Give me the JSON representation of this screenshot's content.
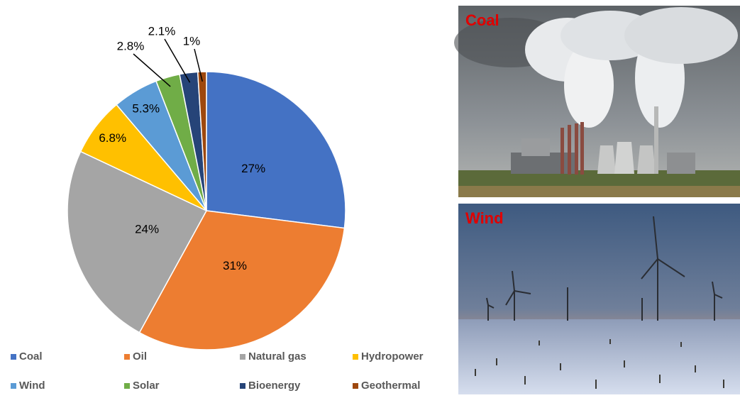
{
  "chart_data": {
    "type": "pie",
    "categories": [
      "Coal",
      "Oil",
      "Natural gas",
      "Hydropower",
      "Wind",
      "Solar",
      "Bioenergy",
      "Geothermal"
    ],
    "values": [
      27,
      31,
      24,
      6.8,
      5.3,
      2.8,
      2.1,
      1
    ],
    "value_labels": [
      "27%",
      "31%",
      "24%",
      "6.8%",
      "5.3%",
      "2.8%",
      "2.1%",
      "1%"
    ],
    "colors": [
      "#4472c4",
      "#ed7d31",
      "#a5a5a5",
      "#ffc000",
      "#5b9bd5",
      "#70ad47",
      "#264478",
      "#9e480e"
    ],
    "legend": "bottom"
  },
  "photos": [
    {
      "label": "Coal"
    },
    {
      "label": "Wind"
    }
  ]
}
